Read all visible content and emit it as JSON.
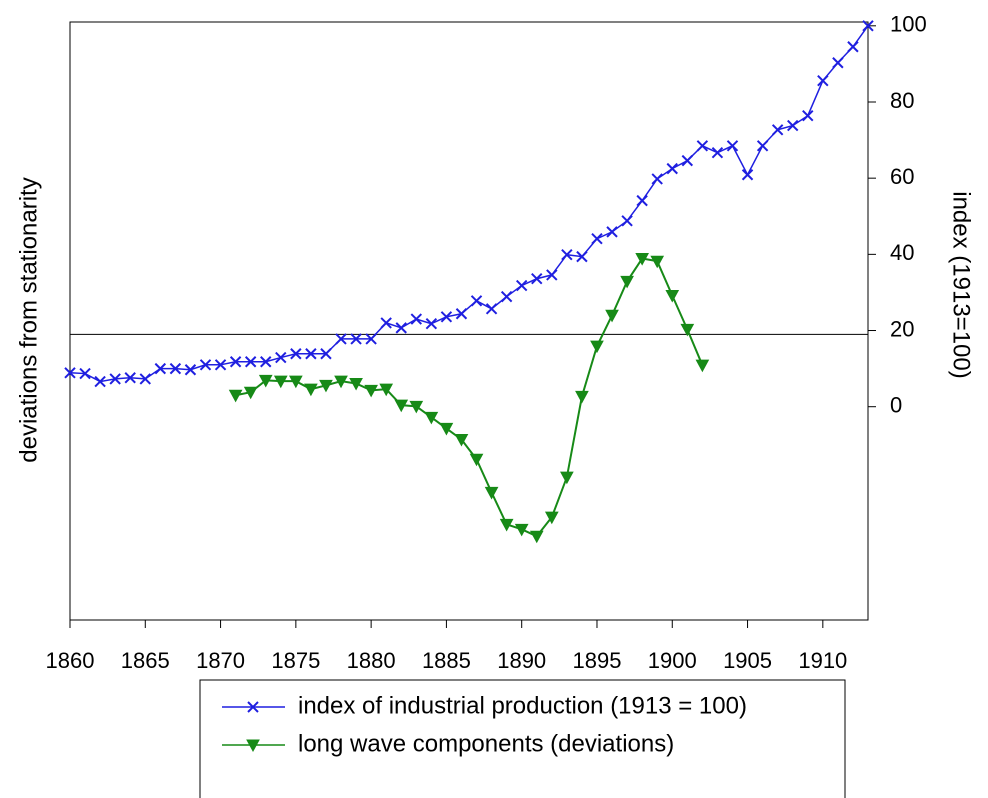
{
  "chart_data": {
    "type": "line",
    "ylabel": "deviations from stationarity",
    "y2label": "index (1913=100)",
    "x": [
      1860,
      1861,
      1862,
      1863,
      1864,
      1865,
      1866,
      1867,
      1868,
      1869,
      1870,
      1871,
      1872,
      1873,
      1874,
      1875,
      1876,
      1877,
      1878,
      1879,
      1880,
      1881,
      1882,
      1883,
      1884,
      1885,
      1886,
      1887,
      1888,
      1889,
      1890,
      1891,
      1892,
      1893,
      1894,
      1895,
      1896,
      1897,
      1898,
      1899,
      1900,
      1901,
      1902,
      1903,
      1904,
      1905,
      1906,
      1907,
      1908,
      1909,
      1910,
      1911,
      1912,
      1913
    ],
    "xlim": [
      1860,
      1913
    ],
    "xticks": [
      1860,
      1865,
      1870,
      1875,
      1880,
      1885,
      1890,
      1895,
      1900,
      1905,
      1910
    ],
    "ylim": [
      -75,
      82
    ],
    "y2lim": [
      -56,
      101
    ],
    "y2ticks": [
      0,
      20,
      40,
      60,
      80,
      100
    ],
    "legend": "bottom",
    "series": [
      {
        "name": "index of industrial production (1913 = 100)",
        "color": "#1f1fe0",
        "marker": "x",
        "axis": "y2",
        "values": [
          8.9,
          8.7,
          6.6,
          7.3,
          7.6,
          7.3,
          10,
          10,
          9.7,
          11,
          11,
          11.8,
          11.8,
          11.8,
          12.9,
          13.9,
          13.9,
          13.9,
          17.8,
          17.8,
          17.8,
          22,
          20.7,
          23,
          21.8,
          23.6,
          24.4,
          27.8,
          25.7,
          28.9,
          31.8,
          33.6,
          34.6,
          39.9,
          39.4,
          44.1,
          45.9,
          48.8,
          54.1,
          59.8,
          62.5,
          64.6,
          68.5,
          66.7,
          68.5,
          60.9,
          68.5,
          72.7,
          73.8,
          76.4,
          85.6,
          90.3,
          94.5,
          100
        ]
      },
      {
        "name": "long wave components (deviations)",
        "color": "#178a17",
        "marker": "triangle-down",
        "axis": "y",
        "values": [
          null,
          null,
          null,
          null,
          null,
          null,
          null,
          null,
          null,
          null,
          null,
          -16,
          -15.2,
          -12.1,
          -12.3,
          -12.3,
          -14.4,
          -13.4,
          -12.3,
          -12.9,
          -14.7,
          -14.4,
          -18.6,
          -18.9,
          -21.8,
          -24.7,
          -27.6,
          -32.8,
          -41.5,
          -49.9,
          -51.2,
          -53,
          -48,
          -37.5,
          -16.3,
          -3.1,
          5,
          13.9,
          19.9,
          19.2,
          10.2,
          1.3,
          -8.1,
          null,
          null,
          null,
          null,
          null,
          null,
          null,
          null,
          null,
          null,
          null
        ]
      }
    ]
  }
}
